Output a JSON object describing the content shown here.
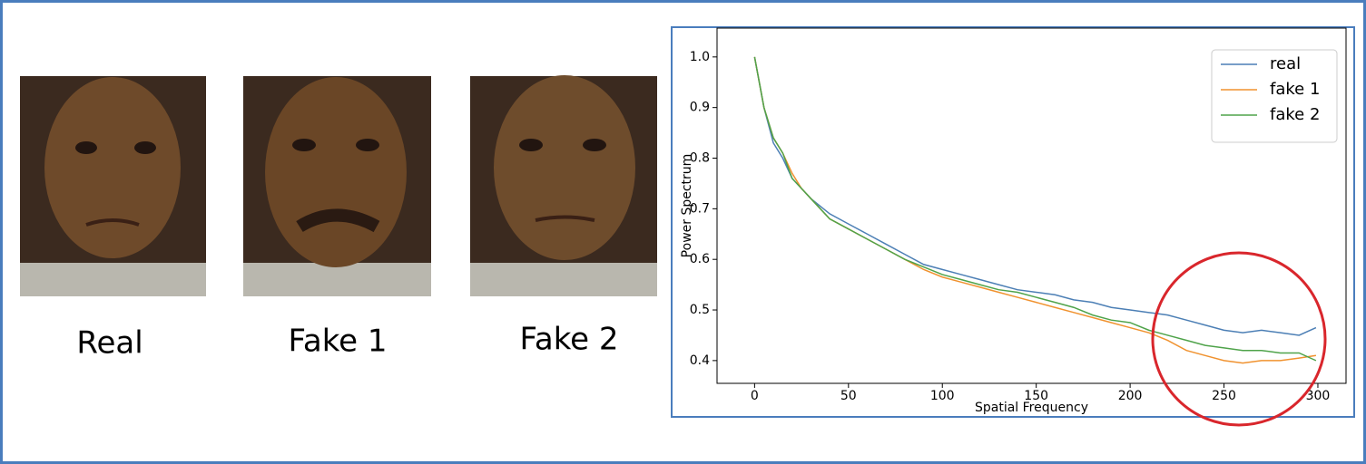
{
  "images": [
    {
      "caption": "Real"
    },
    {
      "caption": "Fake 1"
    },
    {
      "caption": "Fake 2"
    }
  ],
  "chart_data": {
    "type": "line",
    "x_label": "Spatial Frequency",
    "y_label": "Power Spectrum",
    "x": [
      0,
      5,
      10,
      15,
      20,
      25,
      30,
      40,
      50,
      60,
      70,
      80,
      90,
      100,
      110,
      120,
      130,
      140,
      150,
      160,
      170,
      180,
      190,
      200,
      210,
      220,
      230,
      240,
      250,
      260,
      270,
      280,
      290,
      299
    ],
    "series": [
      {
        "name": "real",
        "color": "#4c7fb5",
        "values": [
          1.0,
          0.9,
          0.83,
          0.8,
          0.76,
          0.74,
          0.72,
          0.69,
          0.67,
          0.65,
          0.63,
          0.61,
          0.59,
          0.58,
          0.57,
          0.56,
          0.55,
          0.54,
          0.535,
          0.53,
          0.52,
          0.515,
          0.505,
          0.5,
          0.495,
          0.49,
          0.48,
          0.47,
          0.46,
          0.455,
          0.46,
          0.455,
          0.45,
          0.465
        ]
      },
      {
        "name": "fake 1",
        "color": "#f0922f",
        "values": [
          1.0,
          0.9,
          0.84,
          0.81,
          0.77,
          0.74,
          0.72,
          0.68,
          0.66,
          0.64,
          0.62,
          0.6,
          0.58,
          0.565,
          0.555,
          0.545,
          0.535,
          0.525,
          0.515,
          0.505,
          0.495,
          0.485,
          0.475,
          0.465,
          0.455,
          0.44,
          0.42,
          0.41,
          0.4,
          0.395,
          0.4,
          0.4,
          0.405,
          0.41
        ]
      },
      {
        "name": "fake 2",
        "color": "#4fa34a",
        "values": [
          1.0,
          0.9,
          0.84,
          0.81,
          0.76,
          0.74,
          0.72,
          0.68,
          0.66,
          0.64,
          0.62,
          0.6,
          0.585,
          0.57,
          0.56,
          0.55,
          0.54,
          0.535,
          0.525,
          0.515,
          0.505,
          0.49,
          0.48,
          0.475,
          0.46,
          0.45,
          0.44,
          0.43,
          0.425,
          0.42,
          0.42,
          0.415,
          0.415,
          0.4
        ]
      }
    ],
    "xlim": [
      -20,
      315
    ],
    "ylim": [
      0.355,
      1.057
    ],
    "xticks": [
      0,
      50,
      100,
      150,
      200,
      250,
      300
    ],
    "yticks": [
      {
        "value": 1,
        "label": "1.0"
      },
      0.9,
      0.8,
      0.7,
      0.6,
      0.5,
      0.4
    ],
    "legend": "upper right",
    "grid": false
  }
}
